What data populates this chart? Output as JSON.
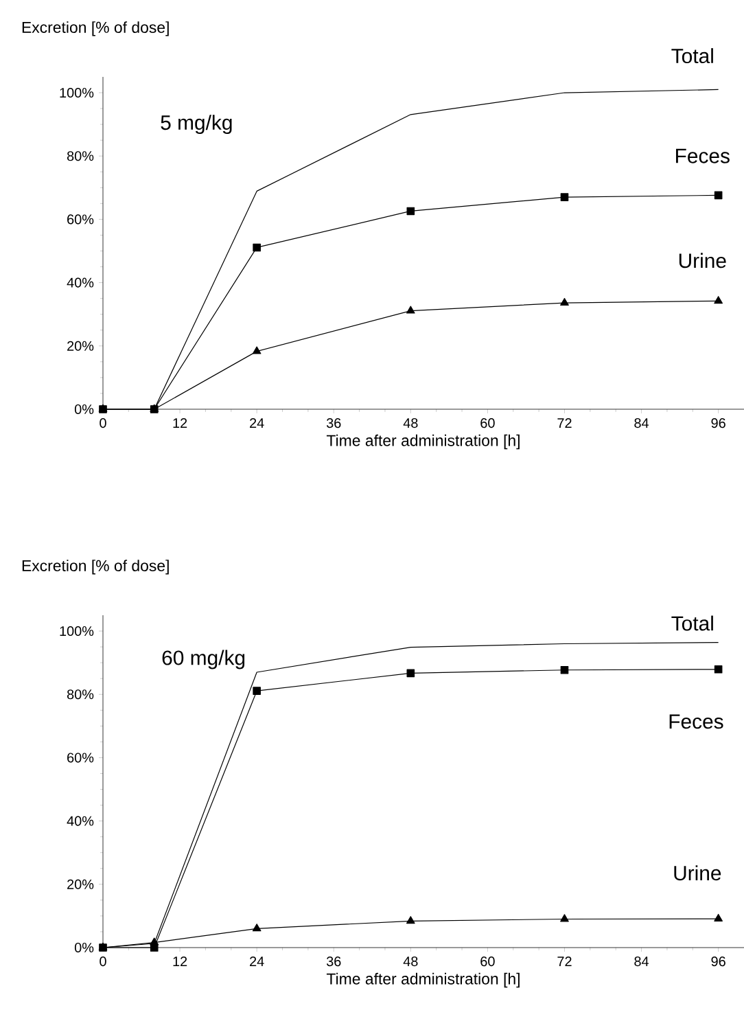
{
  "chart_data": [
    {
      "type": "line",
      "ylabel": "Excretion [% of dose]",
      "xlabel": "Time after administration [h]",
      "annotations": [
        "5 mg/kg"
      ],
      "x": [
        0,
        8,
        24,
        48,
        72,
        96
      ],
      "xlim": [
        0,
        100
      ],
      "xticks": [
        0,
        12,
        24,
        36,
        48,
        60,
        72,
        84,
        96
      ],
      "ylim": [
        0,
        105
      ],
      "yticks": [
        {
          "value": 0,
          "label": "0%"
        },
        {
          "value": 20,
          "label": "20%"
        },
        {
          "value": 40,
          "label": "40%"
        },
        {
          "value": 60,
          "label": "60%"
        },
        {
          "value": 80,
          "label": "80%"
        },
        {
          "value": 100,
          "label": "100%"
        }
      ],
      "grid": false,
      "legend": false,
      "series": [
        {
          "name": "Total",
          "color": "#000000",
          "marker": "none",
          "values": [
            0,
            0,
            68.9,
            93.1,
            100,
            101
          ]
        },
        {
          "name": "Feces",
          "color": "#000000",
          "marker": "square",
          "values": [
            0,
            0,
            51.1,
            62.6,
            67.0,
            67.6
          ]
        },
        {
          "name": "Urine",
          "color": "#000000",
          "marker": "triangle",
          "values": [
            0,
            0,
            18.3,
            31.1,
            33.6,
            34.2
          ]
        }
      ]
    },
    {
      "type": "line",
      "ylabel": "Excretion [% of dose]",
      "xlabel": "Time after administration [h]",
      "annotations": [
        "60 mg/kg"
      ],
      "x": [
        0,
        8,
        24,
        48,
        72,
        96
      ],
      "xlim": [
        0,
        100
      ],
      "xticks": [
        0,
        12,
        24,
        36,
        48,
        60,
        72,
        84,
        96
      ],
      "ylim": [
        0,
        105
      ],
      "yticks": [
        {
          "value": 0,
          "label": "0%"
        },
        {
          "value": 20,
          "label": "20%"
        },
        {
          "value": 40,
          "label": "40%"
        },
        {
          "value": 60,
          "label": "60%"
        },
        {
          "value": 80,
          "label": "80%"
        },
        {
          "value": 100,
          "label": "100%"
        }
      ],
      "grid": false,
      "legend": false,
      "series": [
        {
          "name": "Total",
          "color": "#000000",
          "marker": "none",
          "values": [
            0,
            1.3,
            87.0,
            94.9,
            96.0,
            96.4
          ]
        },
        {
          "name": "Feces",
          "color": "#000000",
          "marker": "square",
          "values": [
            0,
            0,
            81.1,
            86.7,
            87.7,
            87.9
          ]
        },
        {
          "name": "Urine",
          "color": "#000000",
          "marker": "triangle",
          "values": [
            0,
            1.6,
            6.0,
            8.4,
            9.0,
            9.1
          ]
        }
      ]
    }
  ]
}
